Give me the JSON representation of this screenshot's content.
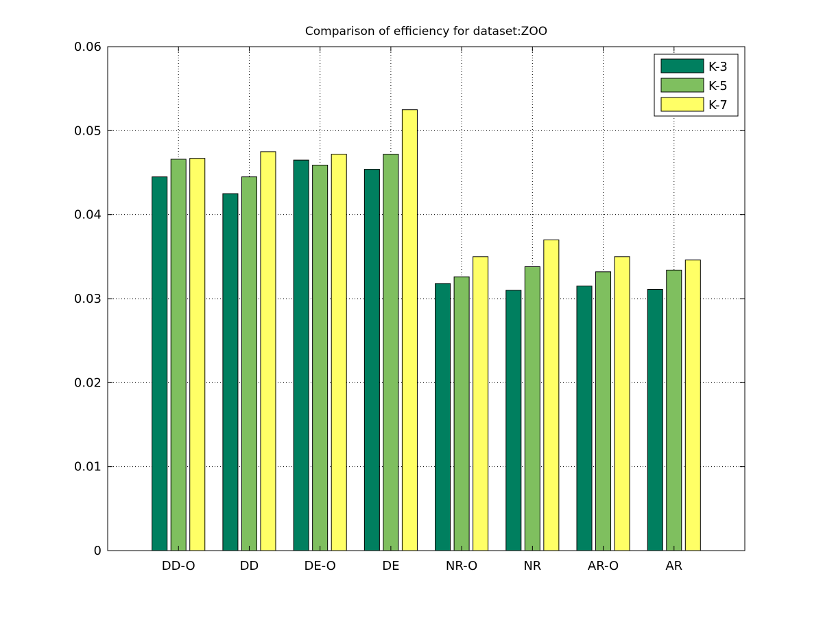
{
  "chart_data": {
    "type": "bar",
    "title": "Comparison of efficiency for dataset:ZOO",
    "xlabel": "",
    "ylabel": "",
    "ylim": [
      0,
      0.06
    ],
    "yticks": [
      "0",
      "0.01",
      "0.02",
      "0.03",
      "0.04",
      "0.05",
      "0.06"
    ],
    "ytick_values": [
      0,
      0.01,
      0.02,
      0.03,
      0.04,
      0.05,
      0.06
    ],
    "grid": true,
    "legend_position": "top-right",
    "categories": [
      "DD-O",
      "DD",
      "DE-O",
      "DE",
      "NR-O",
      "NR",
      "AR-O",
      "AR"
    ],
    "series": [
      {
        "name": "K-3",
        "color": "#007f5f",
        "values": [
          0.0445,
          0.0425,
          0.0465,
          0.0454,
          0.0318,
          0.031,
          0.0315,
          0.0311
        ]
      },
      {
        "name": "K-5",
        "color": "#7fbf5f",
        "values": [
          0.0466,
          0.0445,
          0.0459,
          0.0472,
          0.0326,
          0.0338,
          0.0332,
          0.0334
        ]
      },
      {
        "name": "K-7",
        "color": "#ffff66",
        "values": [
          0.0467,
          0.0475,
          0.0472,
          0.0525,
          0.035,
          0.037,
          0.035,
          0.0346
        ]
      }
    ]
  }
}
